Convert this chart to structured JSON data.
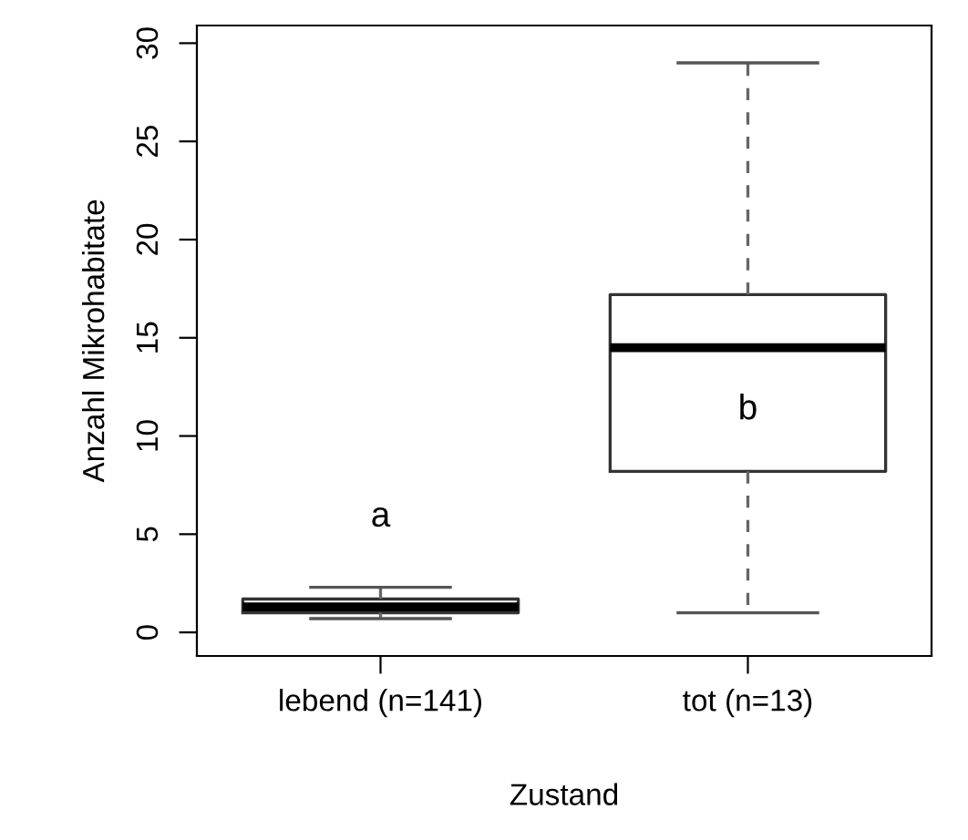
{
  "chart_data": {
    "type": "box",
    "xlabel": "Zustand",
    "ylabel": "Anzahl Mikrohabitate",
    "categories": [
      "lebend (n=141)",
      "tot (n=13)"
    ],
    "boxes": [
      {
        "low": 0.7,
        "q1": 1.0,
        "median": 1.3,
        "q3": 1.7,
        "high": 2.3
      },
      {
        "low": 1,
        "q1": 8.2,
        "median": 14.5,
        "q3": 17.2,
        "high": 29
      }
    ],
    "ylim": [
      -1.2,
      30.9
    ],
    "yticks": [
      0,
      5,
      10,
      15,
      20,
      25,
      30
    ],
    "grid": false,
    "legend": false,
    "annotations": [
      "a",
      "b"
    ]
  }
}
